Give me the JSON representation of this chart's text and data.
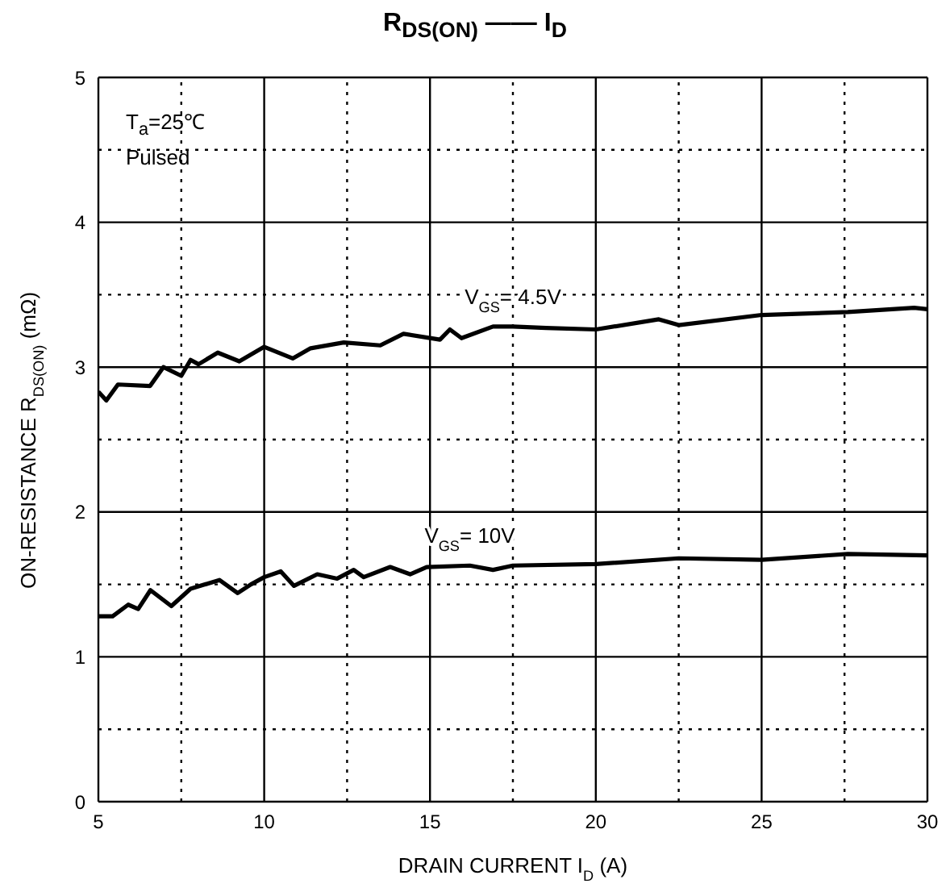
{
  "chart_data": {
    "type": "line",
    "title": "R$_{DS(ON)}$  —— I$_{D}$",
    "xlabel": "DRAIN CURRENT   I$_{D}$   (A)",
    "ylabel": "ON-RESISTANCE    R$_{DS(ON)}$    (mΩ)",
    "xlim": [
      5,
      30
    ],
    "ylim": [
      0,
      5
    ],
    "xticks": [
      5,
      {
        "value": 7.5,
        "label": null
      },
      10,
      {
        "value": 12.5,
        "label": null
      },
      15,
      {
        "value": 17.5,
        "label": null
      },
      20,
      {
        "value": 22.5,
        "label": null
      },
      25,
      {
        "value": 27.5,
        "label": null
      },
      30
    ],
    "yticks": [
      0,
      {
        "value": 0.5,
        "label": null
      },
      1,
      {
        "value": 1.5,
        "label": null
      },
      2,
      {
        "value": 2.5,
        "label": null
      },
      3,
      {
        "value": 3.5,
        "label": null
      },
      4,
      {
        "value": 4.5,
        "label": null
      },
      5
    ],
    "grid": true,
    "marker": "none",
    "line_style": "solid",
    "annotations": [
      "T$_{a}$=25℃",
      "Pulsed"
    ],
    "series": [
      {
        "name": "V$_{GS}$= 4.5V",
        "color": "#000000",
        "x": [
          5,
          5.24,
          5.59,
          6.56,
          6.96,
          7.5,
          7.78,
          8.02,
          8.6,
          9.25,
          10,
          10.86,
          11.4,
          12.4,
          13.5,
          14.2,
          15.3,
          15.6,
          15.95,
          16.9,
          17.5,
          18.5,
          20,
          21.9,
          22.5,
          25,
          27.6,
          29.6,
          30
        ],
        "values": [
          2.83,
          2.77,
          2.88,
          2.87,
          3.0,
          2.94,
          3.05,
          3.02,
          3.1,
          3.04,
          3.14,
          3.06,
          3.13,
          3.17,
          3.15,
          3.23,
          3.19,
          3.26,
          3.2,
          3.28,
          3.28,
          3.27,
          3.26,
          3.33,
          3.29,
          3.36,
          3.38,
          3.41,
          3.4
        ]
      },
      {
        "name": "V$_{GS}$= 10V",
        "color": "#000000",
        "x": [
          5,
          5.43,
          5.9,
          6.2,
          6.57,
          7.2,
          7.78,
          8.65,
          9.2,
          9.6,
          10,
          10.5,
          10.9,
          11.6,
          12.2,
          12.7,
          13,
          13.8,
          14.4,
          14.9,
          16.2,
          16.9,
          17.5,
          20,
          22.5,
          25,
          27.6,
          30
        ],
        "values": [
          1.28,
          1.28,
          1.36,
          1.33,
          1.46,
          1.35,
          1.47,
          1.53,
          1.44,
          1.5,
          1.55,
          1.59,
          1.49,
          1.57,
          1.54,
          1.6,
          1.55,
          1.62,
          1.57,
          1.62,
          1.63,
          1.6,
          1.63,
          1.64,
          1.68,
          1.67,
          1.71,
          1.7
        ]
      }
    ]
  }
}
